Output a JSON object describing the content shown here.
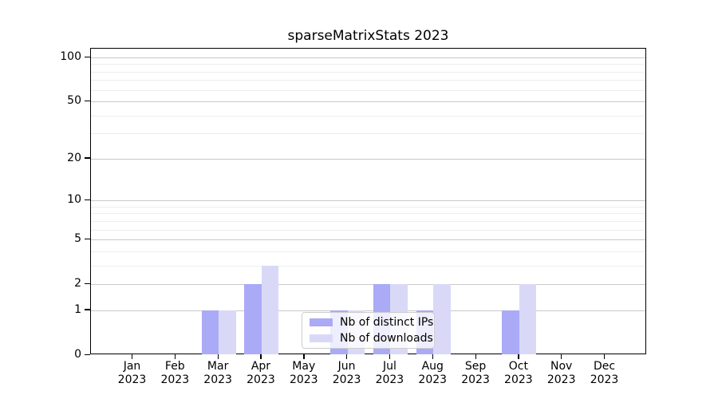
{
  "chart_data": {
    "type": "bar",
    "title": "sparseMatrixStats 2023",
    "categories": [
      "Jan",
      "Feb",
      "Mar",
      "Apr",
      "May",
      "Jun",
      "Jul",
      "Aug",
      "Sep",
      "Oct",
      "Nov",
      "Dec"
    ],
    "category_sublabel": "2023",
    "series": [
      {
        "name": "Nb of distinct IPs",
        "color": "#aaaaf7",
        "values": [
          0,
          0,
          1,
          2,
          0,
          1,
          2,
          1,
          0,
          1,
          0,
          0
        ]
      },
      {
        "name": "Nb of downloads",
        "color": "#d9d9f7",
        "values": [
          0,
          0,
          1,
          3,
          0,
          1,
          2,
          2,
          0,
          2,
          0,
          0
        ]
      }
    ],
    "y_scale": "log1p",
    "ylim": [
      0,
      115
    ],
    "y_major_ticks": [
      0,
      1,
      2,
      5,
      10,
      20,
      50,
      100
    ],
    "y_minor_gridlines": [
      3,
      4,
      6,
      7,
      8,
      9,
      30,
      40,
      60,
      70,
      80,
      90
    ],
    "grid": true,
    "legend_position": "lower center",
    "colors": {
      "major_grid": "#c9c9c9",
      "minor_grid": "#ededed",
      "axis": "#000000",
      "text": "#000000",
      "background": "#ffffff"
    }
  }
}
